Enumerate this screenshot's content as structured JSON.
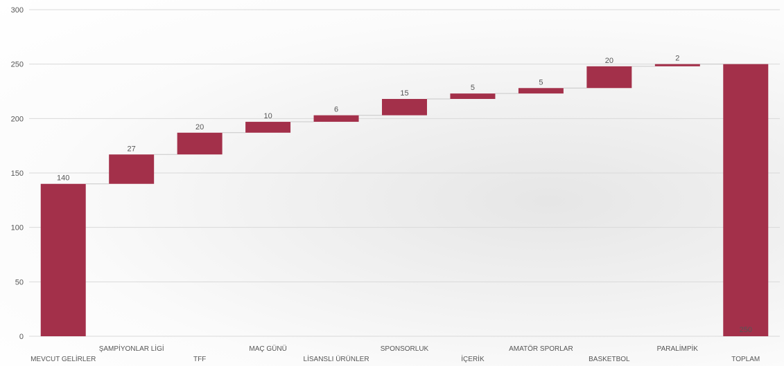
{
  "chart_data": {
    "type": "bar",
    "subtype": "waterfall",
    "categories": [
      "MEVCUT GELİRLER",
      "ŞAMPİYONLAR LİGİ",
      "TFF",
      "MAÇ GÜNÜ",
      "LİSANSLI ÜRÜNLER",
      "SPONSORLUK",
      "İÇERİK",
      "AMATÖR SPORLAR",
      "BASKETBOL",
      "PARALİMPİK",
      "TOPLAM"
    ],
    "values": [
      140,
      27,
      20,
      10,
      6,
      15,
      5,
      5,
      20,
      2,
      250
    ],
    "bar_kinds": [
      "total",
      "delta",
      "delta",
      "delta",
      "delta",
      "delta",
      "delta",
      "delta",
      "delta",
      "delta",
      "total"
    ],
    "data_labels": [
      "140",
      "27",
      "20",
      "10",
      "6",
      "15",
      "5",
      "5",
      "20",
      "2",
      "250"
    ],
    "yticks": [
      "0",
      "50",
      "100",
      "150",
      "200",
      "250",
      "300"
    ],
    "ylim": [
      0,
      300
    ],
    "grid": true,
    "bar_color": "#a3304a",
    "title": "",
    "xlabel": "",
    "ylabel": ""
  }
}
